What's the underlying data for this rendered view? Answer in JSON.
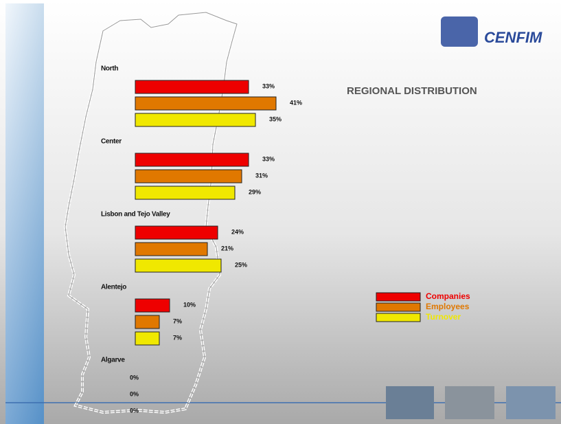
{
  "chart_data": {
    "type": "bar",
    "orientation": "horizontal",
    "title": "REGIONAL DISTRIBUTION",
    "logo": "CENFIM",
    "categories": [
      "North",
      "Center",
      "Lisbon and Tejo Valley",
      "Alentejo",
      "Algarve"
    ],
    "series": [
      {
        "name": "Companies",
        "color": "#ee0000",
        "values": [
          33,
          33,
          24,
          10,
          0
        ],
        "value_labels": [
          "33%",
          "33%",
          "24%",
          "10%",
          "0%"
        ]
      },
      {
        "name": "Employees",
        "color": "#e07800",
        "values": [
          41,
          31,
          21,
          7,
          0
        ],
        "value_labels": [
          "41%",
          "31%",
          "21%",
          "7%",
          "0%"
        ]
      },
      {
        "name": "Turnover",
        "color": "#f0e800",
        "values": [
          35,
          29,
          25,
          7,
          0
        ],
        "value_labels": [
          "35%",
          "29%",
          "25%",
          "7%",
          "0%"
        ]
      }
    ],
    "legend": "right"
  }
}
